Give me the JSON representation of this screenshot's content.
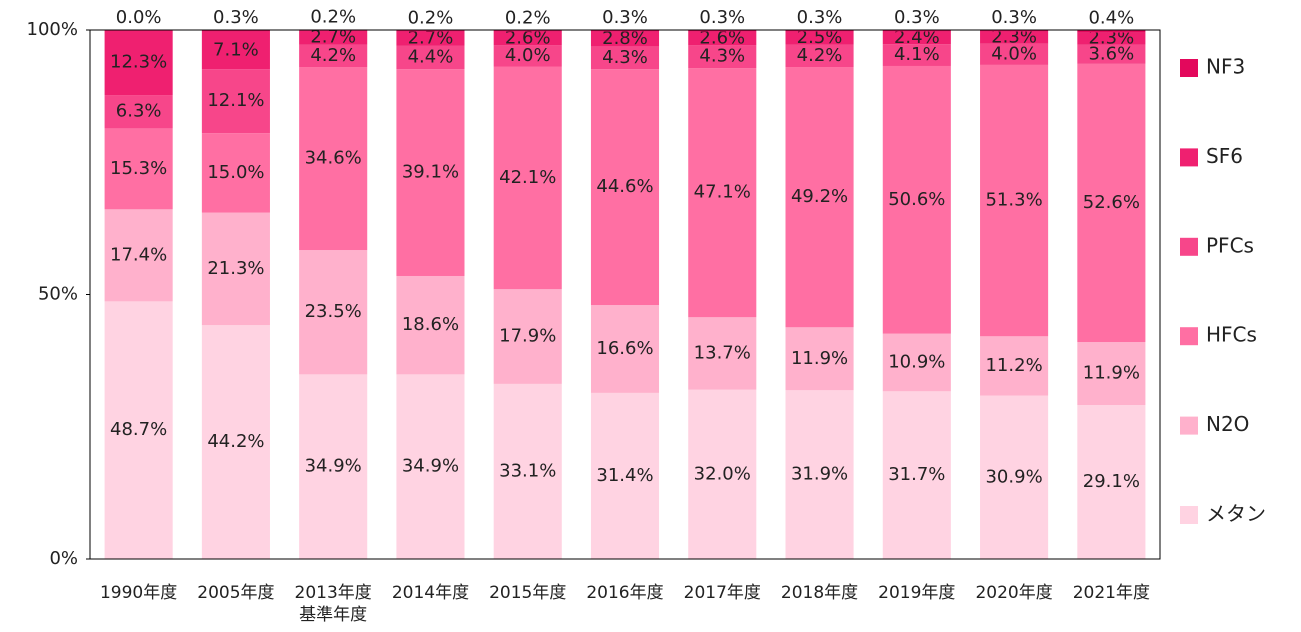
{
  "chart_data": {
    "type": "stacked_bar",
    "categories": [
      "1990年度",
      "2005年度",
      "2013年度\n基準年度",
      "2014年度",
      "2015年度",
      "2016年度",
      "2017年度",
      "2018年度",
      "2019年度",
      "2020年度",
      "2021年度"
    ],
    "series": [
      {
        "name": "メタン",
        "color": "#ffd3e2",
        "values": [
          48.7,
          44.2,
          34.9,
          34.9,
          33.1,
          31.4,
          32.0,
          31.9,
          31.7,
          30.9,
          29.1
        ],
        "value_labels": [
          "48.7%",
          "44.2%",
          "34.9%",
          "34.9%",
          "33.1%",
          "31.4%",
          "32.0%",
          "31.9%",
          "31.7%",
          "30.9%",
          "29.1%"
        ]
      },
      {
        "name": "N2O",
        "color": "#ffb1cc",
        "values": [
          17.4,
          21.3,
          23.5,
          18.6,
          17.9,
          16.6,
          13.7,
          11.9,
          10.9,
          11.2,
          11.9
        ],
        "value_labels": [
          "17.4%",
          "21.3%",
          "23.5%",
          "18.6%",
          "17.9%",
          "16.6%",
          "13.7%",
          "11.9%",
          "10.9%",
          "11.2%",
          "11.9%"
        ]
      },
      {
        "name": "HFCs",
        "color": "#ff6fa3",
        "values": [
          15.3,
          15.0,
          34.6,
          39.1,
          42.1,
          44.6,
          47.1,
          49.2,
          50.6,
          51.3,
          52.6
        ],
        "value_labels": [
          "15.3%",
          "15.0%",
          "34.6%",
          "39.1%",
          "42.1%",
          "44.6%",
          "47.1%",
          "49.2%",
          "50.6%",
          "51.3%",
          "52.6%"
        ]
      },
      {
        "name": "PFCs",
        "color": "#f7468a",
        "values": [
          6.3,
          12.1,
          4.2,
          4.4,
          4.0,
          4.3,
          4.3,
          4.2,
          4.1,
          4.0,
          3.6
        ],
        "value_labels": [
          "6.3%",
          "12.1%",
          "4.2%",
          "4.4%",
          "4.0%",
          "4.3%",
          "4.3%",
          "4.2%",
          "4.1%",
          "4.0%",
          "3.6%"
        ]
      },
      {
        "name": "SF6",
        "color": "#ef2070",
        "values": [
          12.3,
          7.1,
          2.7,
          2.7,
          2.6,
          2.8,
          2.6,
          2.5,
          2.4,
          2.3,
          2.3
        ],
        "value_labels": [
          "12.3%",
          "7.1%",
          "2.7%",
          "2.7%",
          "2.6%",
          "2.8%",
          "2.6%",
          "2.5%",
          "2.4%",
          "2.3%",
          "2.3%"
        ]
      },
      {
        "name": "NF3",
        "color": "#e3085c",
        "values": [
          0.0,
          0.3,
          0.2,
          0.2,
          0.2,
          0.3,
          0.3,
          0.3,
          0.3,
          0.3,
          0.4
        ],
        "value_labels": [
          "0.0%",
          "0.3%",
          "0.2%",
          "0.2%",
          "0.2%",
          "0.3%",
          "0.3%",
          "0.3%",
          "0.3%",
          "0.3%",
          "0.4%"
        ]
      }
    ],
    "ylim": [
      0,
      100
    ],
    "yticks": [
      {
        "value": 0,
        "label": "0%"
      },
      {
        "value": 50,
        "label": "50%"
      },
      {
        "value": 100,
        "label": "100%"
      }
    ],
    "legend": "right"
  }
}
